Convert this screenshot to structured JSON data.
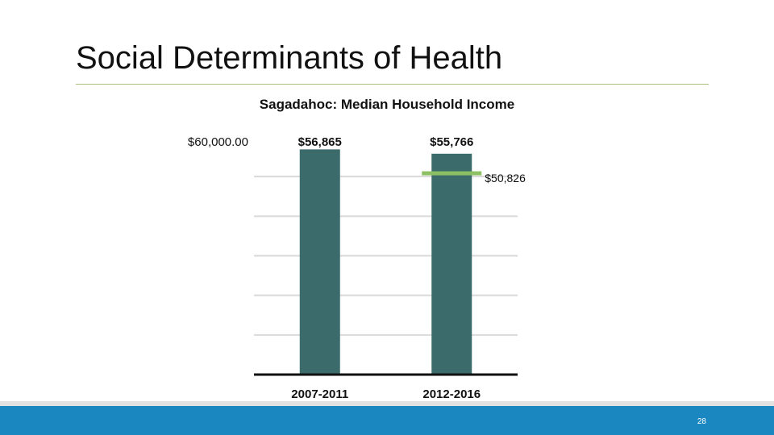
{
  "slide": {
    "title": "Social Determinants of Health",
    "page_number": "28"
  },
  "colors": {
    "bar": "#3c6b6b",
    "marker": "#8dc063",
    "grid": "#d9d9d9",
    "axis": "#111111",
    "footer": "#1b87c0",
    "title_rule": "#a9c07a"
  },
  "chart_data": {
    "type": "bar",
    "title": "Sagadahoc: Median Household Income",
    "categories": [
      "2007-2011",
      "2012-2016"
    ],
    "values": [
      56865,
      55766
    ],
    "value_labels": [
      "$56,865",
      "$55,766"
    ],
    "y_tick_labels": [
      "$60,000.00"
    ],
    "ylim": [
      0,
      60000
    ],
    "grid": true,
    "reference": {
      "value": 50826,
      "label": "$50,826",
      "category": "2012-2016"
    }
  }
}
